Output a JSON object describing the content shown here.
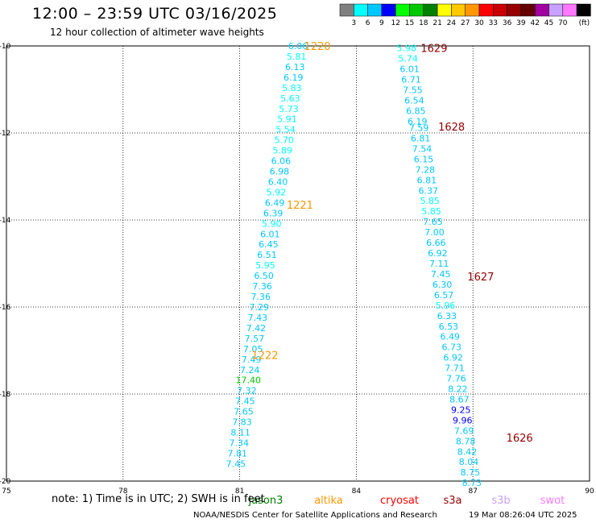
{
  "header": {
    "title": "12:00 – 23:59 UTC 03/16/2025",
    "subtitle": "12 hour collection of altimeter wave heights"
  },
  "footer": {
    "note": "note: 1) Time is in UTC; 2) SWH is in feet",
    "credit": "NOAA/NESDIS Center for Satellite Applications and Research",
    "timestamp": "19 Mar 08:26:04 UTC 2025"
  },
  "colorbar": {
    "unit": "(ft)",
    "colors": [
      "#808080",
      "#00ffff",
      "#00c8ff",
      "#0000ff",
      "#00ff00",
      "#00c800",
      "#008000",
      "#ffff00",
      "#ffc800",
      "#ff9600",
      "#ff0000",
      "#c80000",
      "#960000",
      "#640000",
      "#a000a0",
      "#c8a0ff",
      "#ff78ff",
      "#000000"
    ],
    "labels": [
      "3",
      "6",
      "9",
      "12",
      "15",
      "18",
      "21",
      "24",
      "27",
      "30",
      "33",
      "36",
      "39",
      "42",
      "45",
      "70"
    ]
  },
  "legend": [
    {
      "label": "jason3",
      "color": "#008000"
    },
    {
      "label": "altika",
      "color": "#ff9600"
    },
    {
      "label": "cryosat",
      "color": "#ff0000"
    },
    {
      "label": "s3a",
      "color": "#960000"
    },
    {
      "label": "s3b",
      "color": "#c8a0ff"
    },
    {
      "label": "swot",
      "color": "#ff78ff"
    }
  ],
  "chart_data": {
    "type": "scatter",
    "xlim": [
      75,
      90
    ],
    "ylim": [
      -20,
      -10
    ],
    "x_ticks": [
      75,
      78,
      81,
      84,
      87,
      90
    ],
    "y_ticks": [
      -10,
      -12,
      -14,
      -16,
      -18,
      -20
    ],
    "x_tick_labels": [
      "75",
      "78",
      "81",
      "84",
      "87",
      "90"
    ],
    "y_tick_labels": [
      "-10",
      "-12",
      "-14",
      "-16",
      "-18",
      "-20"
    ],
    "grid": true,
    "unit": "ft",
    "series": [
      {
        "name": "altika",
        "color": "#ff9600",
        "label_color": "#00c8e6",
        "track_labels": [
          {
            "text": "1220",
            "x": 83.0,
            "y": -10.0
          },
          {
            "text": "1221",
            "x": 82.55,
            "y": -13.65
          },
          {
            "text": "1222",
            "x": 81.65,
            "y": -17.1
          }
        ],
        "points": [
          {
            "x": 82.46,
            "y": -10.0,
            "v": "6.06"
          },
          {
            "x": 82.42,
            "y": -10.24,
            "v": "5.81"
          },
          {
            "x": 82.38,
            "y": -10.48,
            "v": "6.13"
          },
          {
            "x": 82.34,
            "y": -10.72,
            "v": "6.19"
          },
          {
            "x": 82.3,
            "y": -10.96,
            "v": "5.83"
          },
          {
            "x": 82.26,
            "y": -11.2,
            "v": "5.63"
          },
          {
            "x": 82.22,
            "y": -11.44,
            "v": "5.73"
          },
          {
            "x": 82.18,
            "y": -11.68,
            "v": "5.91"
          },
          {
            "x": 82.14,
            "y": -11.92,
            "v": "5.54"
          },
          {
            "x": 82.1,
            "y": -12.16,
            "v": "5.70"
          },
          {
            "x": 82.06,
            "y": -12.4,
            "v": "5.89"
          },
          {
            "x": 82.02,
            "y": -12.64,
            "v": "6.06"
          },
          {
            "x": 81.98,
            "y": -12.88,
            "v": "6.98"
          },
          {
            "x": 81.94,
            "y": -13.12,
            "v": "6.40"
          },
          {
            "x": 81.9,
            "y": -13.36,
            "v": "5.92"
          },
          {
            "x": 81.86,
            "y": -13.6,
            "v": "6.49"
          },
          {
            "x": 81.82,
            "y": -13.84,
            "v": "6.39"
          },
          {
            "x": 81.78,
            "y": -14.08,
            "v": "5.90"
          },
          {
            "x": 81.74,
            "y": -14.32,
            "v": "6.01"
          },
          {
            "x": 81.7,
            "y": -14.56,
            "v": "6.45"
          },
          {
            "x": 81.66,
            "y": -14.8,
            "v": "6.51"
          },
          {
            "x": 81.62,
            "y": -15.04,
            "v": "5.95"
          },
          {
            "x": 81.58,
            "y": -15.28,
            "v": "6.50"
          },
          {
            "x": 81.54,
            "y": -15.52,
            "v": "7.36"
          },
          {
            "x": 81.5,
            "y": -15.76,
            "v": "7.36"
          },
          {
            "x": 81.46,
            "y": -16.0,
            "v": "7.29"
          },
          {
            "x": 81.42,
            "y": -16.24,
            "v": "7.43"
          },
          {
            "x": 81.38,
            "y": -16.48,
            "v": "7.42"
          },
          {
            "x": 81.34,
            "y": -16.72,
            "v": "7.57"
          },
          {
            "x": 81.3,
            "y": -16.96,
            "v": "7.05"
          },
          {
            "x": 81.26,
            "y": -17.2,
            "v": "7.49"
          },
          {
            "x": 81.22,
            "y": -17.44,
            "v": "7.24"
          },
          {
            "x": 81.18,
            "y": -17.68,
            "v": "17.40"
          },
          {
            "x": 81.14,
            "y": -17.92,
            "v": "7.32"
          },
          {
            "x": 81.1,
            "y": -18.16,
            "v": "7.45"
          },
          {
            "x": 81.06,
            "y": -18.4,
            "v": "7.65"
          },
          {
            "x": 81.02,
            "y": -18.64,
            "v": "7.83"
          },
          {
            "x": 80.98,
            "y": -18.88,
            "v": "8.11"
          },
          {
            "x": 80.94,
            "y": -19.12,
            "v": "7.34"
          },
          {
            "x": 80.9,
            "y": -19.36,
            "v": "7.81"
          },
          {
            "x": 80.86,
            "y": -19.6,
            "v": "7.45"
          }
        ]
      },
      {
        "name": "s3a",
        "color": "#960000",
        "label_color": "#00c8e6",
        "track_labels": [
          {
            "text": "1629",
            "x": 86.0,
            "y": -10.05
          },
          {
            "text": "1628",
            "x": 86.45,
            "y": -11.85
          },
          {
            "text": "1627",
            "x": 87.2,
            "y": -15.3
          },
          {
            "text": "1626",
            "x": 88.2,
            "y": -19.0
          }
        ],
        "points": [
          {
            "x": 85.25,
            "y": -10.05,
            "v": "5.98"
          },
          {
            "x": 85.29,
            "y": -10.29,
            "v": "5.74"
          },
          {
            "x": 85.33,
            "y": -10.53,
            "v": "6.01"
          },
          {
            "x": 85.37,
            "y": -10.77,
            "v": "6.71"
          },
          {
            "x": 85.41,
            "y": -11.01,
            "v": "7.55"
          },
          {
            "x": 85.45,
            "y": -11.25,
            "v": "6.54"
          },
          {
            "x": 85.49,
            "y": -11.49,
            "v": "6.85"
          },
          {
            "x": 85.53,
            "y": -11.73,
            "v": "6.19"
          },
          {
            "x": 85.57,
            "y": -11.88,
            "v": "7.59"
          },
          {
            "x": 85.61,
            "y": -12.12,
            "v": "6.81"
          },
          {
            "x": 85.65,
            "y": -12.36,
            "v": "7.54"
          },
          {
            "x": 85.69,
            "y": -12.6,
            "v": "6.15"
          },
          {
            "x": 85.73,
            "y": -12.84,
            "v": "7.28"
          },
          {
            "x": 85.77,
            "y": -13.08,
            "v": "6.81"
          },
          {
            "x": 85.81,
            "y": -13.32,
            "v": "6.37"
          },
          {
            "x": 85.85,
            "y": -13.56,
            "v": "5.85"
          },
          {
            "x": 85.89,
            "y": -13.8,
            "v": "5.85"
          },
          {
            "x": 85.93,
            "y": -14.04,
            "v": "7.65"
          },
          {
            "x": 85.97,
            "y": -14.28,
            "v": "7.00"
          },
          {
            "x": 86.01,
            "y": -14.52,
            "v": "6.66"
          },
          {
            "x": 86.05,
            "y": -14.76,
            "v": "6.92"
          },
          {
            "x": 86.09,
            "y": -15.0,
            "v": "7.11"
          },
          {
            "x": 86.13,
            "y": -15.24,
            "v": "7.45"
          },
          {
            "x": 86.17,
            "y": -15.48,
            "v": "6.30"
          },
          {
            "x": 86.21,
            "y": -15.72,
            "v": "6.57"
          },
          {
            "x": 86.25,
            "y": -15.96,
            "v": "5.96"
          },
          {
            "x": 86.29,
            "y": -16.2,
            "v": "6.33"
          },
          {
            "x": 86.33,
            "y": -16.44,
            "v": "6.53"
          },
          {
            "x": 86.37,
            "y": -16.68,
            "v": "6.49"
          },
          {
            "x": 86.41,
            "y": -16.92,
            "v": "6.73"
          },
          {
            "x": 86.45,
            "y": -17.16,
            "v": "6.92"
          },
          {
            "x": 86.49,
            "y": -17.4,
            "v": "7.71"
          },
          {
            "x": 86.53,
            "y": -17.64,
            "v": "7.76"
          },
          {
            "x": 86.57,
            "y": -17.88,
            "v": "8.22"
          },
          {
            "x": 86.61,
            "y": -18.12,
            "v": "8.67"
          },
          {
            "x": 86.65,
            "y": -18.36,
            "v": "9.25"
          },
          {
            "x": 86.69,
            "y": -18.6,
            "v": "9.96"
          },
          {
            "x": 86.73,
            "y": -18.84,
            "v": "7.69"
          },
          {
            "x": 86.77,
            "y": -19.08,
            "v": "8.78"
          },
          {
            "x": 86.81,
            "y": -19.32,
            "v": "8.42"
          },
          {
            "x": 86.85,
            "y": -19.56,
            "v": "8.04"
          },
          {
            "x": 86.89,
            "y": -19.8,
            "v": "8.75"
          },
          {
            "x": 86.93,
            "y": -20.04,
            "v": "8.73"
          }
        ]
      }
    ]
  }
}
